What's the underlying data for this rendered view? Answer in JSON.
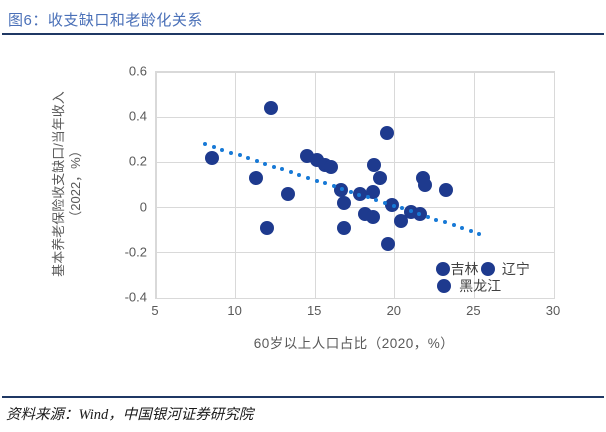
{
  "title": "图6：收支缺口和老龄化关系",
  "source_note": "资料来源：Wind，中国银河证券研究院",
  "colors": {
    "title_text": "#4a70b8",
    "divider_rule": "#1f3864",
    "scatter_dot": "#1e3a8e",
    "trend_line": "#1779d6",
    "gridline": "#d9d9d9",
    "tick_text": "#595959"
  },
  "chart_data": {
    "type": "scatter",
    "title": "收支缺口和老龄化关系",
    "xlabel": "60岁以上人口占比（2020，%）",
    "ylabel": "基本养老保险收支缺口/当年收入",
    "ylabel_line2": "（2022，%）",
    "xlim": [
      5,
      30
    ],
    "ylim": [
      -0.4,
      0.6
    ],
    "grid": true,
    "legend_position": "none",
    "x_ticks": [
      {
        "label": "5",
        "value": 5
      },
      {
        "label": "10",
        "value": 10
      },
      {
        "label": "15",
        "value": 15
      },
      {
        "label": "20",
        "value": 20
      },
      {
        "label": "25",
        "value": 25
      },
      {
        "label": "30",
        "value": 30
      }
    ],
    "y_ticks": [
      {
        "label": "0.6",
        "value": 0.6
      },
      {
        "label": "0.4",
        "value": 0.4
      },
      {
        "label": "0.2",
        "value": 0.2
      },
      {
        "label": "0",
        "value": 0
      },
      {
        "label": "-0.2",
        "value": -0.2
      },
      {
        "label": "-0.4",
        "value": -0.4
      }
    ],
    "points": [
      [
        8.5,
        0.22
      ],
      [
        11.3,
        0.13
      ],
      [
        12.2,
        0.44
      ],
      [
        12.0,
        -0.09
      ],
      [
        13.3,
        0.06
      ],
      [
        14.5,
        0.23
      ],
      [
        15.1,
        0.21
      ],
      [
        15.6,
        0.19
      ],
      [
        16.0,
        0.18
      ],
      [
        16.6,
        0.08
      ],
      [
        16.8,
        0.02
      ],
      [
        16.8,
        -0.09
      ],
      [
        17.8,
        0.06
      ],
      [
        18.6,
        0.07
      ],
      [
        18.7,
        0.19
      ],
      [
        19.1,
        0.13
      ],
      [
        19.5,
        0.33
      ],
      [
        19.8,
        0.01
      ],
      [
        18.1,
        -0.03
      ],
      [
        18.6,
        -0.04
      ],
      [
        19.6,
        -0.16
      ],
      [
        20.4,
        -0.06
      ],
      [
        21.0,
        -0.02
      ],
      [
        21.6,
        -0.03
      ],
      [
        21.8,
        0.13
      ],
      [
        21.9,
        0.1
      ],
      [
        23.2,
        0.08
      ]
    ],
    "labeled_points": [
      {
        "name": "吉林",
        "x": 23.0,
        "y": -0.27,
        "label_dx": 8
      },
      {
        "name": "辽宁",
        "x": 25.85,
        "y": -0.27,
        "label_dx": 14
      },
      {
        "name": "黑龙江",
        "x": 23.1,
        "y": -0.345,
        "label_dx": 15
      }
    ],
    "trend_line": {
      "style": "dotted",
      "x1": 8.1,
      "y1": 0.28,
      "x2": 25.3,
      "y2": -0.115
    }
  }
}
